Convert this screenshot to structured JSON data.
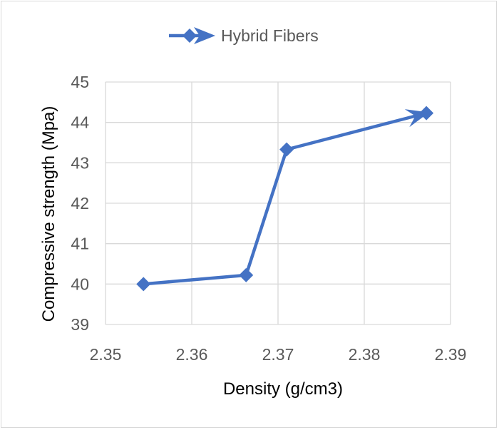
{
  "chart_data": {
    "type": "scatter",
    "title": "",
    "xlabel": "Density (g/cm3)",
    "ylabel": "Compressive strength (Mpa)",
    "xlim": [
      2.35,
      2.39
    ],
    "ylim": [
      39,
      45
    ],
    "xticks": [
      "2.35",
      "2.36",
      "2.37",
      "2.38",
      "2.39"
    ],
    "yticks": [
      "45",
      "44",
      "43",
      "42",
      "41",
      "40",
      "39"
    ],
    "grid": true,
    "legend_position": "top",
    "series": [
      {
        "name": "Hybrid Fibers",
        "color": "#4472c4",
        "marker": "diamond",
        "line": "straight-with-arrow-end",
        "x": [
          2.3544,
          2.3663,
          2.371,
          2.3872
        ],
        "y": [
          40.0,
          40.22,
          43.33,
          44.23
        ]
      }
    ]
  }
}
